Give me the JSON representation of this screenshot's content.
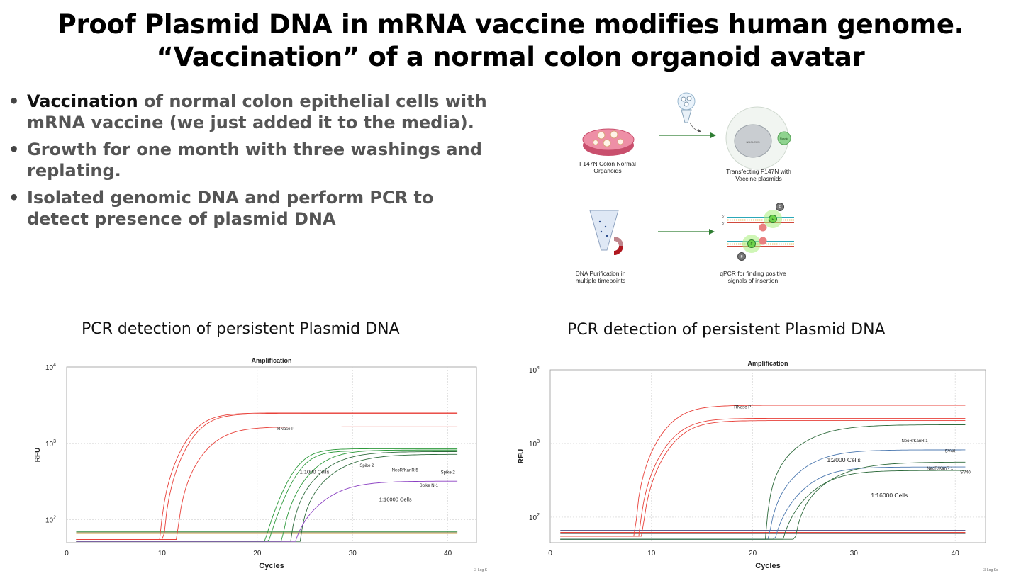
{
  "title": {
    "line1": "Proof Plasmid DNA in mRNA vaccine modifies human genome.",
    "line2": "“Vaccination” of a normal colon organoid avatar"
  },
  "bullets": [
    {
      "lead": "Vaccination",
      "text": " of normal colon epithelial cells with mRNA vaccine (we just added it to the media)."
    },
    {
      "lead": "",
      "text": "Growth for one month with three washings and replating."
    },
    {
      "lead": "",
      "text": "Isolated genomic DNA and perform PCR to detect presence of plasmid DNA"
    }
  ],
  "diagram": {
    "step1": "F147N Colon Normal Organoids",
    "step2": "Transfecting F147N with Vaccine plasmids",
    "step3": "DNA Purification in multiple timepoints",
    "step4": "qPCR for finding positive signals of insertion",
    "cell_label": "NUCLEUS",
    "plasmid_label": "Plasmid",
    "fluor": "F",
    "strand5": "5'",
    "strand3": "3'"
  },
  "subtitles": [
    "PCR detection of persistent Plasmid DNA",
    "PCR detection of persistent Plasmid DNA"
  ],
  "colors": {
    "red": "#e8413a",
    "green": "#2e9a3c",
    "dark_green": "#2f6b3d",
    "purple": "#8a3fc2",
    "blue": "#4d79b0"
  },
  "chart_data": [
    {
      "type": "line",
      "title": "Amplification",
      "xlabel": "Cycles",
      "ylabel": "RFU",
      "y_scale": "log",
      "xlim": [
        0,
        43
      ],
      "ylim": [
        50,
        10000
      ],
      "xticks": [
        "0",
        "10",
        "20",
        "30",
        "40"
      ],
      "ytick_exponents": [
        "2",
        "3",
        "4"
      ],
      "ytick_base": "10",
      "grid": true,
      "footer": "☑ Log S",
      "annotations": [
        {
          "text": "RNase P",
          "x": 23,
          "y": 1500,
          "size": 6
        },
        {
          "text": "1:1000 Cells",
          "x": 26,
          "y": 400,
          "size": 7.5
        },
        {
          "text": "Spike 2",
          "x": 31.5,
          "y": 490,
          "size": 6
        },
        {
          "text": "NeoR/KanR 5",
          "x": 35.5,
          "y": 430,
          "size": 6
        },
        {
          "text": "Spike 2",
          "x": 40,
          "y": 400,
          "size": 6
        },
        {
          "text": "Spike N-1",
          "x": 38,
          "y": 270,
          "size": 6
        },
        {
          "text": "1:16000 Cells",
          "x": 34.5,
          "y": 175,
          "size": 7.5
        }
      ],
      "series": [
        {
          "color": "#e8413a",
          "ct": 12.8,
          "plateau": 2500,
          "k": 0.32,
          "base": 55
        },
        {
          "color": "#e8413a",
          "ct": 13.2,
          "plateau": 2450,
          "k": 0.32,
          "base": 55
        },
        {
          "color": "#e8413a",
          "ct": 14.6,
          "plateau": 1650,
          "k": 0.26,
          "base": 55
        },
        {
          "color": "#2e9a3c",
          "ct": 23.8,
          "plateau": 850,
          "k": 0.38,
          "base": 52
        },
        {
          "color": "#2e9a3c",
          "ct": 24.2,
          "plateau": 800,
          "k": 0.38,
          "base": 52
        },
        {
          "color": "#2e9a3c",
          "ct": 25.6,
          "plateau": 820,
          "k": 0.26,
          "base": 52
        },
        {
          "color": "#2f6b3d",
          "ct": 26.5,
          "plateau": 780,
          "k": 0.22,
          "base": 52
        },
        {
          "color": "#2f6b3d",
          "ct": 27.5,
          "plateau": 720,
          "k": 0.2,
          "base": 52
        },
        {
          "color": "#8a3fc2",
          "ct": 27.0,
          "plateau": 320,
          "k": 0.22,
          "base": 52
        }
      ],
      "baselines": [
        {
          "color": "#000000",
          "y": 71
        },
        {
          "color": "#2e9a3c",
          "y": 69
        },
        {
          "color": "#e8413a",
          "y": 67
        },
        {
          "color": "#c89a3a",
          "y": 66
        }
      ]
    },
    {
      "type": "line",
      "title": "Amplification",
      "xlabel": "Cycles",
      "ylabel": "RFU",
      "y_scale": "log",
      "xlim": [
        0,
        43
      ],
      "ylim": [
        45,
        10000
      ],
      "xticks": [
        "0",
        "10",
        "20",
        "30",
        "40"
      ],
      "ytick_exponents": [
        "2",
        "3",
        "4"
      ],
      "ytick_base": "10",
      "grid": true,
      "footer": "☑ Log Sc",
      "annotations": [
        {
          "text": "RNase P",
          "x": 19,
          "y": 3000,
          "size": 6
        },
        {
          "text": "1:2000 Cells",
          "x": 29,
          "y": 560,
          "size": 8.5
        },
        {
          "text": "NeoR/KanR 1",
          "x": 36,
          "y": 1050,
          "size": 6
        },
        {
          "text": "SV40",
          "x": 39.5,
          "y": 760,
          "size": 6
        },
        {
          "text": "NeoR/KanR 1",
          "x": 38.5,
          "y": 440,
          "size": 6
        },
        {
          "text": "SV40",
          "x": 41,
          "y": 390,
          "size": 6
        },
        {
          "text": "1:16000 Cells",
          "x": 33.5,
          "y": 185,
          "size": 8.5
        }
      ],
      "series": [
        {
          "color": "#e8413a",
          "ct": 11.4,
          "plateau": 3300,
          "k": 0.3,
          "base": 55
        },
        {
          "color": "#e8413a",
          "ct": 11.8,
          "plateau": 2200,
          "k": 0.3,
          "base": 55
        },
        {
          "color": "#e8413a",
          "ct": 12.1,
          "plateau": 2050,
          "k": 0.3,
          "base": 55
        },
        {
          "color": "#2f6b3d",
          "ct": 24.3,
          "plateau": 1800,
          "k": 0.19,
          "base": 50
        },
        {
          "color": "#4d79b0",
          "ct": 24.6,
          "plateau": 820,
          "k": 0.22,
          "base": 50
        },
        {
          "color": "#4d79b0",
          "ct": 25.2,
          "plateau": 480,
          "k": 0.25,
          "base": 50
        },
        {
          "color": "#2f6b3d",
          "ct": 26.0,
          "plateau": 430,
          "k": 0.24,
          "base": 50
        },
        {
          "color": "#2f6b3d",
          "ct": 27.2,
          "plateau": 560,
          "k": 0.19,
          "base": 50
        }
      ],
      "baselines": [
        {
          "color": "#2a2a6a",
          "y": 66
        },
        {
          "color": "#e8413a",
          "y": 62
        },
        {
          "color": "#222222",
          "y": 60
        }
      ]
    }
  ]
}
